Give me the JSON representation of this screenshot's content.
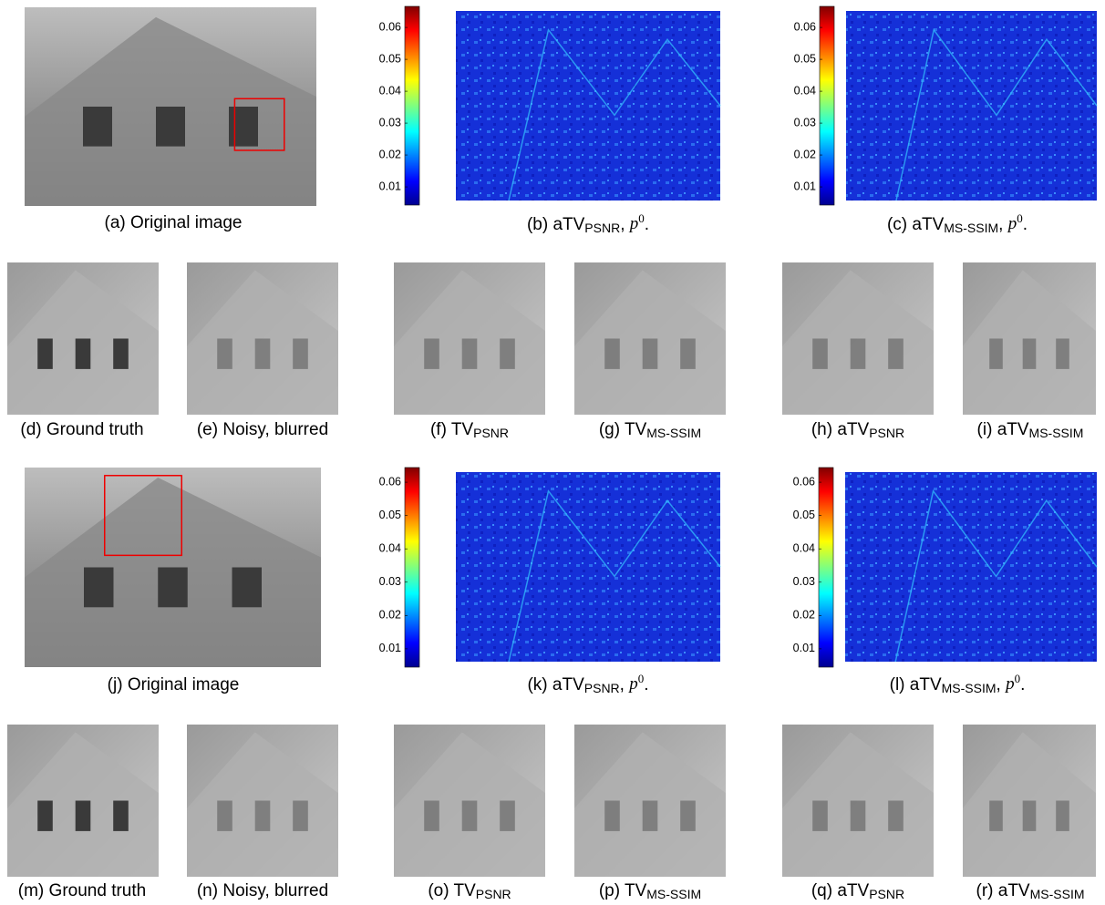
{
  "panels": [
    {
      "caption": [
        {
          "text": "(a) Original image"
        }
      ]
    },
    {
      "caption": [
        {
          "text": "(b) aTV"
        },
        {
          "text": "PSNR",
          "style": "sub"
        },
        {
          "text": ", "
        },
        {
          "text": "p",
          "style": "italic"
        },
        {
          "text": "0",
          "style": "sup"
        },
        {
          "text": "."
        }
      ],
      "colorbar": {
        "lim": [
          0.0043,
          0.0666
        ],
        "ticks": [
          0.01,
          0.02,
          0.03,
          0.04,
          0.05,
          0.06
        ]
      }
    },
    {
      "caption": [
        {
          "text": "(c) aTV"
        },
        {
          "text": "MS-SSIM",
          "style": "sub"
        },
        {
          "text": ", "
        },
        {
          "text": "p",
          "style": "italic"
        },
        {
          "text": "0",
          "style": "sup"
        },
        {
          "text": "."
        }
      ],
      "colorbar": {
        "lim": [
          0.0043,
          0.0666
        ],
        "ticks": [
          0.01,
          0.02,
          0.03,
          0.04,
          0.05,
          0.06
        ]
      }
    },
    {
      "caption": [
        {
          "text": "(d) Ground truth"
        }
      ]
    },
    {
      "caption": [
        {
          "text": "(e) Noisy, blurred"
        }
      ]
    },
    {
      "caption": [
        {
          "text": "(f) TV"
        },
        {
          "text": "PSNR",
          "style": "sub"
        }
      ]
    },
    {
      "caption": [
        {
          "text": "(g) TV"
        },
        {
          "text": "MS-SSIM",
          "style": "sub"
        }
      ]
    },
    {
      "caption": [
        {
          "text": "(h) aTV"
        },
        {
          "text": "PSNR",
          "style": "sub"
        }
      ]
    },
    {
      "caption": [
        {
          "text": "(i) aTV"
        },
        {
          "text": "MS-SSIM",
          "style": "sub"
        }
      ]
    },
    {
      "caption": [
        {
          "text": "(j) Original image"
        }
      ]
    },
    {
      "caption": [
        {
          "text": "(k) aTV"
        },
        {
          "text": "PSNR",
          "style": "sub"
        },
        {
          "text": ", "
        },
        {
          "text": "p",
          "style": "italic"
        },
        {
          "text": "0",
          "style": "sup"
        },
        {
          "text": "."
        }
      ],
      "colorbar": {
        "lim": [
          0.0045,
          0.0644
        ],
        "ticks": [
          0.01,
          0.02,
          0.03,
          0.04,
          0.05,
          0.06
        ]
      }
    },
    {
      "caption": [
        {
          "text": "(l) aTV"
        },
        {
          "text": "MS-SSIM",
          "style": "sub"
        },
        {
          "text": ", "
        },
        {
          "text": "p",
          "style": "italic"
        },
        {
          "text": "0",
          "style": "sup"
        },
        {
          "text": "."
        }
      ],
      "colorbar": {
        "lim": [
          0.0045,
          0.0644
        ],
        "ticks": [
          0.01,
          0.02,
          0.03,
          0.04,
          0.05,
          0.06
        ]
      }
    },
    {
      "caption": [
        {
          "text": "(m) Ground truth"
        }
      ]
    },
    {
      "caption": [
        {
          "text": "(n) Noisy, blurred"
        }
      ]
    },
    {
      "caption": [
        {
          "text": "(o) TV"
        },
        {
          "text": "PSNR",
          "style": "sub"
        }
      ]
    },
    {
      "caption": [
        {
          "text": "(p) TV"
        },
        {
          "text": "MS-SSIM",
          "style": "sub"
        }
      ]
    },
    {
      "caption": [
        {
          "text": "(q) aTV"
        },
        {
          "text": "PSNR",
          "style": "sub"
        }
      ]
    },
    {
      "caption": [
        {
          "text": "(r) aTV"
        },
        {
          "text": "MS-SSIM",
          "style": "sub"
        }
      ]
    }
  ]
}
